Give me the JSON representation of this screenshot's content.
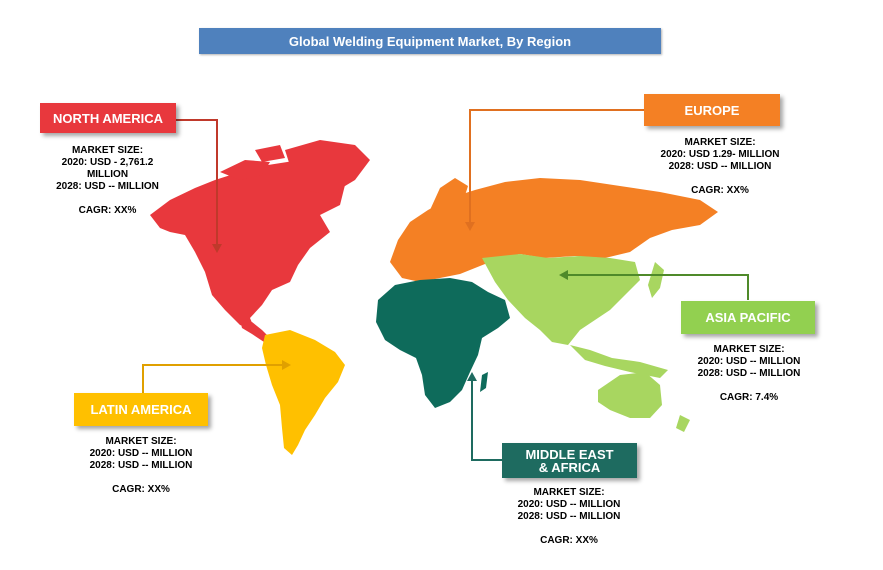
{
  "title": "Global Welding Equipment Market, By Region",
  "colors": {
    "title_bg": "#4f81bd",
    "north_america": "#e8383d",
    "europe": "#f48024",
    "asia_pacific": "#92d050",
    "asia_pacific_map": "#a8d660",
    "latin_america": "#ffc000",
    "mea": "#1e6b60",
    "mea_map": "#0e6b5b"
  },
  "regions": {
    "north_america": {
      "label": "NORTH AMERICA",
      "market_size_label": "MARKET SIZE:",
      "line_2020": "2020: USD -  2,761.2",
      "line_2020_cont": "MILLION",
      "line_2028": "2028: USD -- MILLION",
      "cagr": "CAGR: XX%"
    },
    "europe": {
      "label": "EUROPE",
      "market_size_label": "MARKET SIZE:",
      "line_2020": "2020: USD 1.29- MILLION",
      "line_2028": "2028: USD -- MILLION",
      "cagr": "CAGR: XX%"
    },
    "asia_pacific": {
      "label": "ASIA PACIFIC",
      "market_size_label": "MARKET SIZE:",
      "line_2020": "2020: USD -- MILLION",
      "line_2028": "2028: USD -- MILLION",
      "cagr": "CAGR: 7.4%"
    },
    "latin_america": {
      "label": "LATIN AMERICA",
      "market_size_label": "MARKET SIZE:",
      "line_2020": "2020: USD -- MILLION",
      "line_2028": "2028: USD -- MILLION",
      "cagr": "CAGR: XX%"
    },
    "mea": {
      "label_line1": "MIDDLE EAST",
      "label_line2": "& AFRICA",
      "market_size_label": "MARKET SIZE:",
      "line_2020": "2020: USD -- MILLION",
      "line_2028": "2028: USD -- MILLION",
      "cagr": "CAGR: XX%"
    }
  }
}
